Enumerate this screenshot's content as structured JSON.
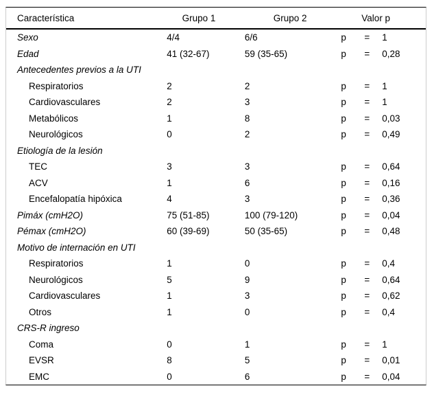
{
  "colors": {
    "background": "#ffffff",
    "text": "#000000",
    "rule": "#000000",
    "frame": "#cccccc"
  },
  "table": {
    "headers": [
      "Característica",
      "Grupo 1",
      "Grupo 2",
      "Valor p"
    ],
    "rows": [
      {
        "label": "Sexo",
        "g1": "4/4",
        "g2": "6/6",
        "p": "p",
        "eq": "=",
        "val": "1"
      },
      {
        "label": "Edad",
        "g1": "41 (32-67)",
        "g2": "59 (35-65)",
        "p": "p",
        "eq": "=",
        "val": "0,28"
      },
      {
        "label": "Antecedentes previos a la UTI",
        "g1": "",
        "g2": "",
        "p": "",
        "eq": "",
        "val": ""
      },
      {
        "label": "Respiratorios",
        "g1": "2",
        "g2": "2",
        "p": "p",
        "eq": "=",
        "val": "1"
      },
      {
        "label": "Cardiovasculares",
        "g1": "2",
        "g2": "3",
        "p": "p",
        "eq": "=",
        "val": "1"
      },
      {
        "label": "Metabólicos",
        "g1": "1",
        "g2": "8",
        "p": "p",
        "eq": "=",
        "val": "0,03"
      },
      {
        "label": "Neurológicos",
        "g1": "0",
        "g2": "2",
        "p": "p",
        "eq": "=",
        "val": "0,49"
      },
      {
        "label": "Etiología de la lesión",
        "g1": "",
        "g2": "",
        "p": "",
        "eq": "",
        "val": ""
      },
      {
        "label": "TEC",
        "g1": "3",
        "g2": "3",
        "p": "p",
        "eq": "=",
        "val": "0,64"
      },
      {
        "label": "ACV",
        "g1": "1",
        "g2": "6",
        "p": "p",
        "eq": "=",
        "val": "0,16"
      },
      {
        "label": "Encefalopatía hipóxica",
        "g1": "4",
        "g2": "3",
        "p": "p",
        "eq": "=",
        "val": "0,36"
      },
      {
        "label": "Pimáx (cmH2O)",
        "g1": "75 (51-85)",
        "g2": "100 (79-120)",
        "p": "p",
        "eq": "=",
        "val": "0,04"
      },
      {
        "label": "Pémax (cmH2O)",
        "g1": "60 (39-69)",
        "g2": "50 (35-65)",
        "p": "p",
        "eq": "=",
        "val": "0,48"
      },
      {
        "label": "Motivo de internación en UTI",
        "g1": "",
        "g2": "",
        "p": "",
        "eq": "",
        "val": ""
      },
      {
        "label": "Respiratorios",
        "g1": "1",
        "g2": "0",
        "p": "p",
        "eq": "=",
        "val": "0,4"
      },
      {
        "label": "Neurológicos",
        "g1": "5",
        "g2": "9",
        "p": "p",
        "eq": "=",
        "val": "0,64"
      },
      {
        "label": "Cardiovasculares",
        "g1": "1",
        "g2": "3",
        "p": "p",
        "eq": "=",
        "val": "0,62"
      },
      {
        "label": "Otros",
        "g1": "1",
        "g2": "0",
        "p": "p",
        "eq": "=",
        "val": "0,4"
      },
      {
        "label": "CRS-R ingreso",
        "g1": "",
        "g2": "",
        "p": "",
        "eq": "",
        "val": ""
      },
      {
        "label": "Coma",
        "g1": "0",
        "g2": "1",
        "p": "p",
        "eq": "=",
        "val": "1"
      },
      {
        "label": "EVSR",
        "g1": "8",
        "g2": "5",
        "p": "p",
        "eq": "=",
        "val": "0,01"
      },
      {
        "label": "EMC",
        "g1": "0",
        "g2": "6",
        "p": "p",
        "eq": "=",
        "val": "0,04"
      }
    ]
  }
}
